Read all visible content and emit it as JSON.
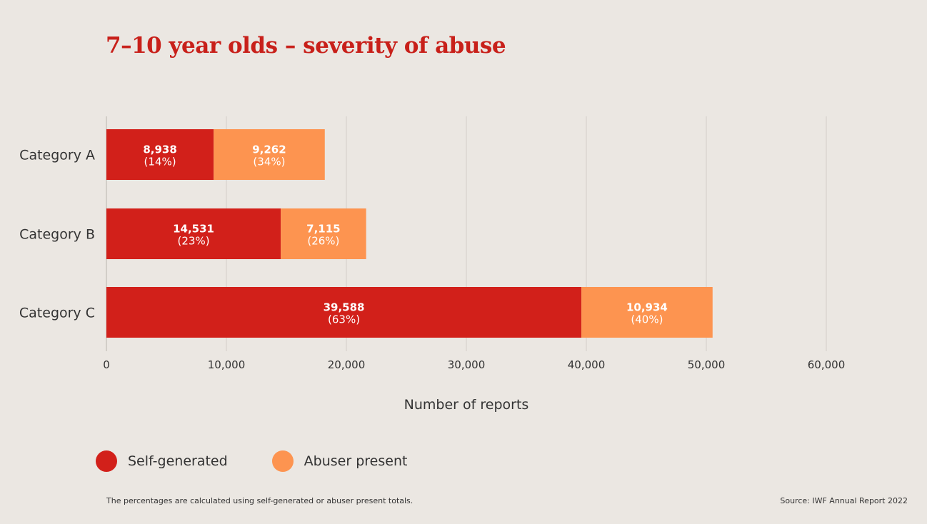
{
  "chart_data": {
    "type": "bar",
    "orientation": "horizontal",
    "stacked": true,
    "title": "7–10 year olds – severity of abuse",
    "categories": [
      "Category A",
      "Category B",
      "Category C"
    ],
    "series": [
      {
        "name": "Self-generated",
        "color": "#d2201a",
        "values": [
          8938,
          14531,
          39588
        ],
        "value_labels": [
          "8,938",
          "14,531",
          "39,588"
        ],
        "percent_labels": [
          "(14%)",
          "(23%)",
          "(63%)"
        ]
      },
      {
        "name": "Abuser present",
        "color": "#fd9450",
        "values": [
          9262,
          7115,
          10934
        ],
        "value_labels": [
          "9,262",
          "7,115",
          "10,934"
        ],
        "percent_labels": [
          "(34%)",
          "(26%)",
          "(40%)"
        ]
      }
    ],
    "xlabel": "Number of reports",
    "ylabel": "",
    "xlim": [
      0,
      60000
    ],
    "xticks": [
      0,
      10000,
      20000,
      30000,
      40000,
      50000,
      60000
    ],
    "xtick_labels": [
      "0",
      "10,000",
      "20,000",
      "30,000",
      "40,000",
      "50,000",
      "60,000"
    ],
    "grid": true,
    "legend_position": "bottom-left"
  },
  "legend": {
    "items": [
      {
        "label": "Self-generated",
        "color": "#d2201a"
      },
      {
        "label": "Abuser present",
        "color": "#fd9450"
      }
    ]
  },
  "footnote": "The percentages are calculated using self-generated or abuser present totals.",
  "source": "Source: IWF Annual Report 2022"
}
